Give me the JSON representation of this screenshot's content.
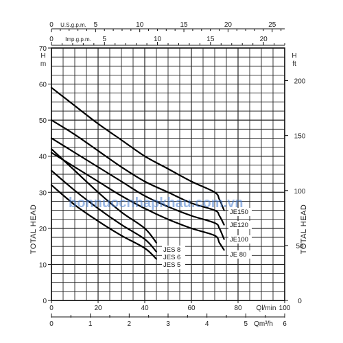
{
  "chart_data": {
    "type": "line",
    "title": "",
    "xlabel": "Ql/min",
    "ylabel": "TOTAL HEAD",
    "x_unit": "Ql/min",
    "y_unit_left": "H m",
    "y_unit_right": "H ft",
    "xlim": [
      0,
      100
    ],
    "ylim": [
      0,
      70
    ],
    "x_ticks": [
      0,
      20,
      40,
      60,
      80,
      100
    ],
    "y_ticks": [
      0,
      10,
      20,
      30,
      40,
      50,
      60,
      70
    ],
    "grid": true,
    "secondary_axes": {
      "top_usgpm": {
        "label": "U.S.g.p.m.",
        "ticks": [
          0,
          5,
          10,
          15,
          20,
          25
        ]
      },
      "top_impgpm": {
        "label": "Imp.g.p.m.",
        "ticks": [
          0,
          5,
          10,
          15,
          20
        ]
      },
      "bottom_m3h": {
        "label": "Qm³/h",
        "ticks": [
          0,
          1,
          2,
          3,
          4,
          5,
          6
        ]
      },
      "right_ft": {
        "label": "H ft",
        "ticks": [
          0,
          50,
          100,
          150,
          200
        ]
      }
    },
    "series": [
      {
        "name": "JE150",
        "x": [
          0,
          10,
          20,
          30,
          40,
          50,
          60,
          70,
          72,
          74
        ],
        "y": [
          59,
          54,
          49,
          44.5,
          40,
          36.5,
          33,
          30,
          28,
          25
        ]
      },
      {
        "name": "JE120",
        "x": [
          0,
          10,
          20,
          30,
          40,
          50,
          60,
          70,
          72,
          74
        ],
        "y": [
          50,
          46,
          41.5,
          37,
          33,
          30,
          27,
          25,
          23.5,
          21
        ]
      },
      {
        "name": "JE100",
        "x": [
          0,
          10,
          20,
          30,
          40,
          50,
          60,
          70,
          72,
          74
        ],
        "y": [
          45,
          41,
          37,
          33,
          29,
          26,
          23.5,
          21.5,
          20,
          17
        ]
      },
      {
        "name": "JE 80",
        "x": [
          0,
          10,
          20,
          30,
          40,
          50,
          60,
          70,
          72,
          74
        ],
        "y": [
          41,
          37,
          33,
          29,
          25.5,
          22.5,
          20,
          18,
          16,
          14
        ]
      },
      {
        "name": "JES 8",
        "x": [
          0,
          10,
          20,
          30,
          40,
          45
        ],
        "y": [
          42,
          36,
          30,
          24.5,
          20,
          16
        ]
      },
      {
        "name": "JES 6",
        "x": [
          0,
          10,
          20,
          30,
          40,
          45
        ],
        "y": [
          36,
          30.5,
          25.5,
          21,
          17,
          13.5
        ]
      },
      {
        "name": "JES 5",
        "x": [
          0,
          10,
          20,
          30,
          40,
          45
        ],
        "y": [
          32,
          26.5,
          22,
          18,
          14.5,
          11.5
        ]
      }
    ]
  },
  "watermark": "bonnuocnhapkhau.com.vn"
}
